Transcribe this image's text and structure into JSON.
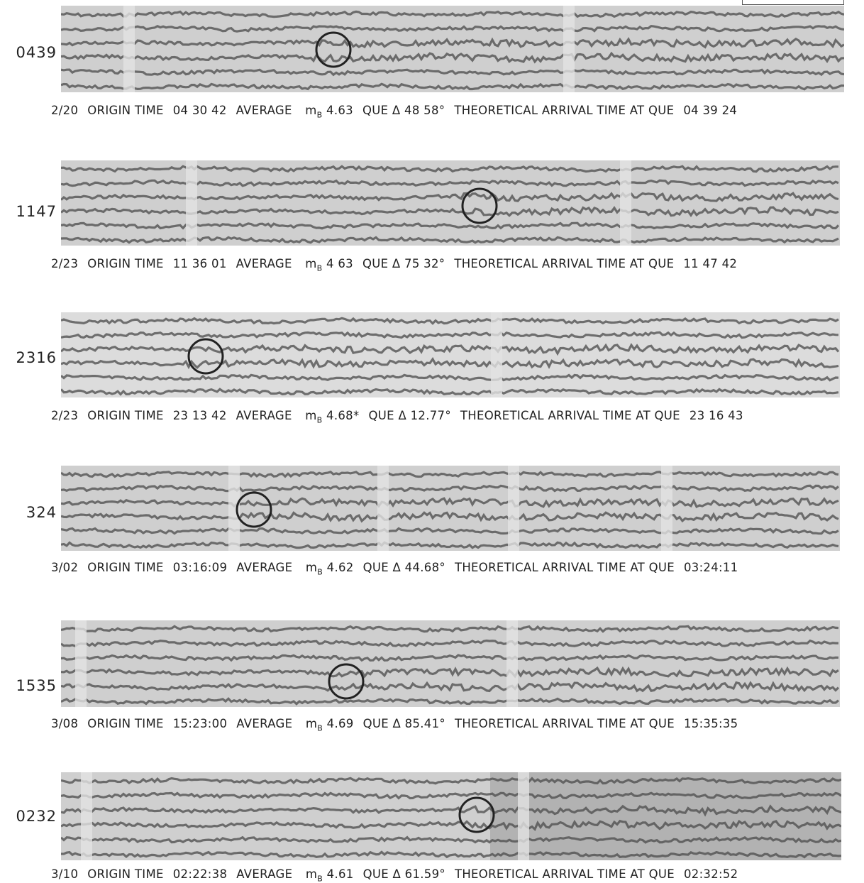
{
  "panels": [
    {
      "label": "0439",
      "caption": {
        "date": "2/20",
        "origin_label": "ORIGIN TIME",
        "origin_time": "04 30 42",
        "avg_label": "AVERAGE",
        "mb_main": "m",
        "mb_sub": "B",
        "magnitude": "4.63",
        "que_label": "QUE",
        "delta_symbol": "Δ",
        "distance": "48 58°",
        "arrival_label": "THEORETICAL ARRIVAL TIME AT QUE",
        "arrival_time": "04 39 24"
      }
    },
    {
      "label": "1147",
      "caption": {
        "date": "2/23",
        "origin_label": "ORIGIN TIME",
        "origin_time": "11 36 01",
        "avg_label": "AVERAGE",
        "mb_main": "m",
        "mb_sub": "B",
        "magnitude": "4 63",
        "que_label": "QUE",
        "delta_symbol": "Δ",
        "distance": "75 32°",
        "arrival_label": "THEORETICAL ARRIVAL TIME AT QUE",
        "arrival_time": "11 47 42"
      }
    },
    {
      "label": "2316",
      "caption": {
        "date": "2/23",
        "origin_label": "ORIGIN TIME",
        "origin_time": "23 13 42",
        "avg_label": "AVERAGE",
        "mb_main": "m",
        "mb_sub": "B",
        "magnitude": "4.68*",
        "que_label": "QUE",
        "delta_symbol": "Δ",
        "distance": "12.77°",
        "arrival_label": "THEORETICAL ARRIVAL TIME AT QUE",
        "arrival_time": "23 16 43"
      }
    },
    {
      "label": "324",
      "caption": {
        "date": "3/02",
        "origin_label": "ORIGIN TIME",
        "origin_time": "03:16:09",
        "avg_label": "AVERAGE",
        "mb_main": "m",
        "mb_sub": "B",
        "magnitude": "4.62",
        "que_label": "QUE",
        "delta_symbol": "Δ",
        "distance": "44.68°",
        "arrival_label": "THEORETICAL ARRIVAL TIME AT QUE",
        "arrival_time": "03:24:11"
      }
    },
    {
      "label": "1535",
      "caption": {
        "date": "3/08",
        "origin_label": "ORIGIN TIME",
        "origin_time": "15:23:00",
        "avg_label": "AVERAGE",
        "mb_main": "m",
        "mb_sub": "B",
        "magnitude": "4.69",
        "que_label": "QUE",
        "delta_symbol": "Δ",
        "distance": "85.41°",
        "arrival_label": "THEORETICAL ARRIVAL TIME AT QUE",
        "arrival_time": "15:35:35"
      }
    },
    {
      "label": "0232",
      "caption": {
        "date": "3/10",
        "origin_label": "ORIGIN TIME",
        "origin_time": "02:22:38",
        "avg_label": "AVERAGE",
        "mb_main": "m",
        "mb_sub": "B",
        "magnitude": "4.61",
        "que_label": "QUE",
        "delta_symbol": "Δ",
        "distance": "61.59°",
        "arrival_label": "THEORETICAL ARRIVAL TIME AT QUE",
        "arrival_time": "02:32:52"
      }
    }
  ],
  "colors": {
    "trace": "#4a4a4a",
    "background": "#cfcfcf",
    "circle": "#222222"
  }
}
